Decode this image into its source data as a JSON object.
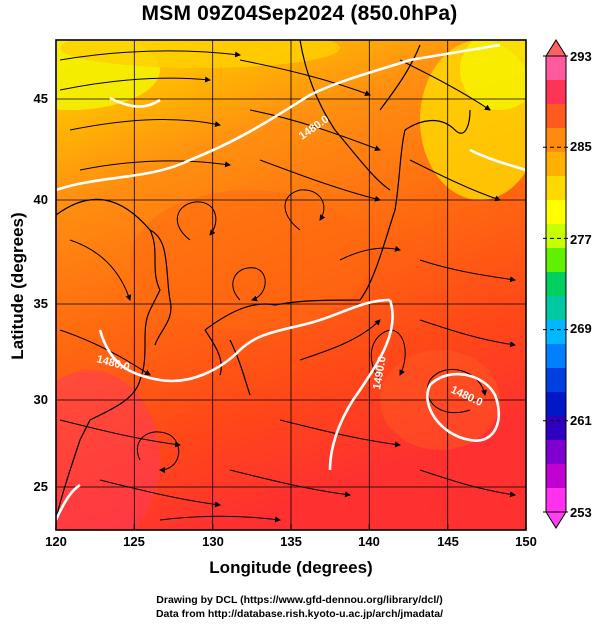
{
  "title": "MSM 09Z04Sep2024 (850.0hPa)",
  "axes": {
    "xlabel": "Longitude (degrees)",
    "ylabel": "Latitude  (degrees)",
    "x_ticks": [
      "120",
      "125",
      "130",
      "135",
      "140",
      "145",
      "150"
    ],
    "y_ticks": [
      "45",
      "40",
      "35",
      "30",
      "25"
    ]
  },
  "colorbar": {
    "ticks": [
      "293",
      "285",
      "277",
      "269",
      "261",
      "253"
    ],
    "colors": [
      "#ff5aa0",
      "#ff3355",
      "#ff5a20",
      "#ff8a10",
      "#ffb000",
      "#ffd800",
      "#ffff00",
      "#c8ff00",
      "#60f000",
      "#00d060",
      "#00c8a0",
      "#00b8ff",
      "#0080ff",
      "#0040e0",
      "#0018c8",
      "#3000c0",
      "#8000d0",
      "#c000d0",
      "#ff30f0"
    ]
  },
  "contours": [
    "1480.0",
    "1480.0",
    "1490.0",
    "1480.0"
  ],
  "credits": {
    "line1": "Drawing by DCL (https://www.gfd-dennou.org/library/dcl/)",
    "line2": "Data from http://database.rish.kyoto-u.ac.jp/arch/jmadata/"
  }
}
